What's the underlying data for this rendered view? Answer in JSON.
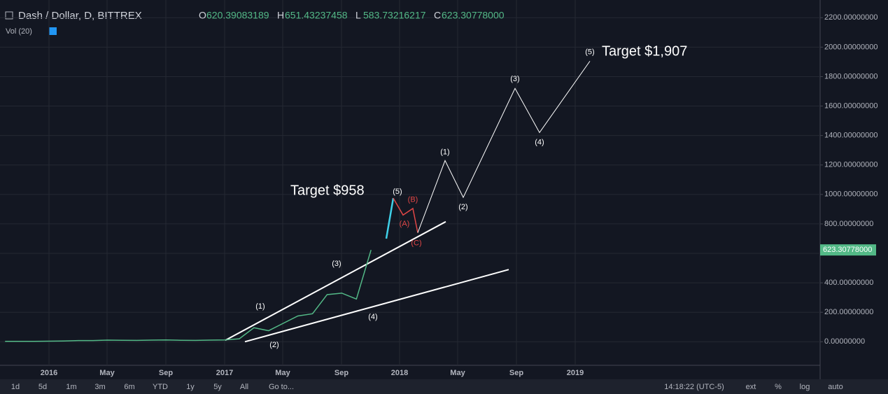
{
  "chart_data": {
    "type": "line",
    "title": "Dash / Dollar, D, BITTREX",
    "ohlc": [
      {
        "key": "O",
        "value": "620.39083189"
      },
      {
        "key": "H",
        "value": "651.43237458"
      },
      {
        "key": "L",
        "value": "583.73216217"
      },
      {
        "key": "C",
        "value": "623.30778000"
      }
    ],
    "indicator": "Vol (20)",
    "x": [
      "2015-10",
      "2015-11",
      "2015-12",
      "2016-01",
      "2016-02",
      "2016-03",
      "2016-04",
      "2016-05",
      "2016-06",
      "2016-07",
      "2016-08",
      "2016-09",
      "2016-10",
      "2016-11",
      "2016-12",
      "2017-01",
      "2017-02",
      "2017-03",
      "2017-04",
      "2017-05",
      "2017-06",
      "2017-07",
      "2017-08",
      "2017-09",
      "2017-10",
      "2017-11"
    ],
    "series": [
      {
        "name": "Dash / Dollar",
        "color": "#53b987",
        "values": [
          3,
          3,
          3,
          4,
          5,
          8,
          8,
          11,
          10,
          9,
          11,
          12,
          10,
          9,
          11,
          12,
          20,
          95,
          75,
          125,
          175,
          190,
          320,
          330,
          290,
          623
        ]
      }
    ],
    "last_price": {
      "value": 623.30778,
      "label": "623.30778000"
    },
    "ylim": [
      -160,
      2320
    ],
    "yticks": [
      {
        "value": 0,
        "label": "0.00000000"
      },
      {
        "value": 200,
        "label": "200.00000000"
      },
      {
        "value": 400,
        "label": "400.00000000"
      },
      {
        "value": 600,
        "label": "600.00000000"
      },
      {
        "value": 800,
        "label": "800.00000000"
      },
      {
        "value": 1000,
        "label": "1000.00000000"
      },
      {
        "value": 1200,
        "label": "1200.00000000"
      },
      {
        "value": 1400,
        "label": "1400.00000000"
      },
      {
        "value": 1600,
        "label": "1600.00000000"
      },
      {
        "value": 1800,
        "label": "1800.00000000"
      },
      {
        "value": 2000,
        "label": "2000.00000000"
      },
      {
        "value": 2200,
        "label": "2200.00000000"
      }
    ],
    "xticks": [
      "2016",
      "May",
      "Sep",
      "2017",
      "May",
      "Sep",
      "2018",
      "May",
      "Sep",
      "2019"
    ],
    "grid": true,
    "trendlines": [
      {
        "color": "#ffffff",
        "values": [
          10,
          815
        ]
      },
      {
        "color": "#ffffff",
        "values": [
          0,
          490
        ]
      }
    ],
    "history_waves": [
      "(1)",
      "(2)",
      "(3)",
      "(4)"
    ],
    "impulse_leg": {
      "color": "#3fd0e8",
      "values": [
        700,
        975
      ]
    },
    "correction": {
      "color": "#e04646",
      "labels": [
        "(5)",
        "(A)",
        "(B)",
        "(C)"
      ],
      "values": [
        975,
        860,
        905,
        740
      ]
    },
    "projection": {
      "color": "#ffffff",
      "labels": [
        "(1)",
        "(2)",
        "(3)",
        "(4)",
        "(5)"
      ],
      "values": [
        1230,
        980,
        1720,
        1420,
        1905
      ]
    },
    "annotations": [
      "Target $958",
      "Target $1,907"
    ],
    "ranges": [
      "1d",
      "5d",
      "1m",
      "3m",
      "6m",
      "YTD",
      "1y",
      "5y",
      "All",
      "Go to..."
    ],
    "clock": "14:18:22 (UTC-5)",
    "options": [
      "ext",
      "%",
      "log",
      "auto"
    ]
  }
}
